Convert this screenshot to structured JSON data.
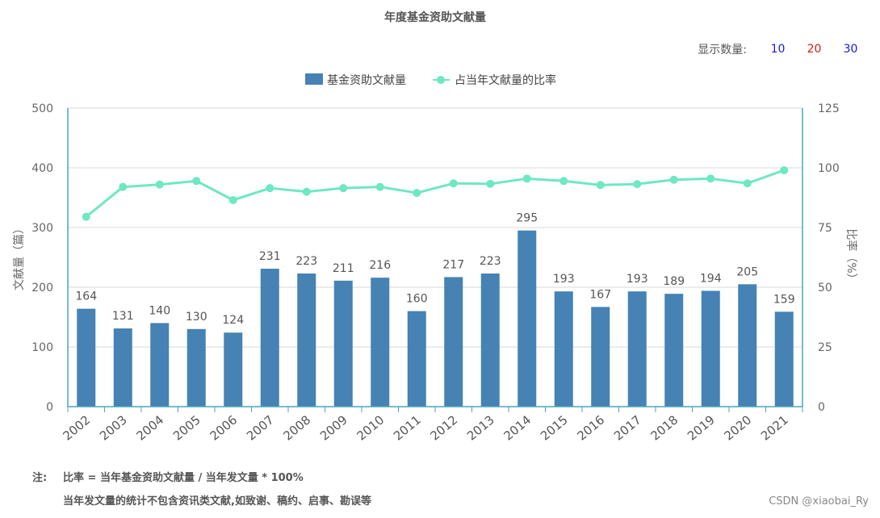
{
  "title": "年度基金资助文献量",
  "display_count": {
    "label": "显示数量:",
    "options": [
      {
        "label": "10",
        "color": "#1a1ad6"
      },
      {
        "label": "20",
        "color": "#d61a1a"
      },
      {
        "label": "30",
        "color": "#1a1ad6"
      }
    ]
  },
  "legend": {
    "bar_label": "基金资助文献量",
    "line_label": "占当年文献量的比率"
  },
  "colors": {
    "bar": "#4682b4",
    "line": "#6ee8c3",
    "axis": "#4aa6c0",
    "grid": "#d9d9d9"
  },
  "chart_data": {
    "type": "bar",
    "categories": [
      "2002",
      "2003",
      "2004",
      "2005",
      "2006",
      "2007",
      "2008",
      "2009",
      "2010",
      "2011",
      "2012",
      "2013",
      "2014",
      "2015",
      "2016",
      "2017",
      "2018",
      "2019",
      "2020",
      "2021"
    ],
    "series": [
      {
        "name": "基金资助文献量",
        "type": "bar",
        "axis": "left",
        "values": [
          164,
          131,
          140,
          130,
          124,
          231,
          223,
          211,
          216,
          160,
          217,
          223,
          295,
          193,
          167,
          193,
          189,
          194,
          205,
          159
        ]
      },
      {
        "name": "占当年文献量的比率",
        "type": "line",
        "axis": "right",
        "values": [
          79.5,
          92,
          93,
          94.5,
          86.5,
          91.5,
          90,
          91.5,
          92,
          89.5,
          93.5,
          93.3,
          95.5,
          94.5,
          92.8,
          93.2,
          95,
          95.5,
          93.5,
          99
        ]
      }
    ],
    "ylabel": "文献量（篇）",
    "ylim": [
      0,
      500
    ],
    "yticks": [
      0,
      100,
      200,
      300,
      400,
      500
    ],
    "y2label": "比率（%）",
    "y2lim": [
      0,
      125
    ],
    "y2ticks": [
      0,
      25,
      50,
      75,
      100,
      125
    ],
    "grid": true,
    "legend_position": "top-center"
  },
  "notes": {
    "line1_tag": "注:",
    "line1_text": "比率 = 当年基金资助文献量 / 当年发文量 * 100%",
    "line2_text": "当年发文量的统计不包含资讯类文献,如致谢、稿约、启事、勘误等"
  },
  "watermark": "CSDN @xiaobai_Ry"
}
